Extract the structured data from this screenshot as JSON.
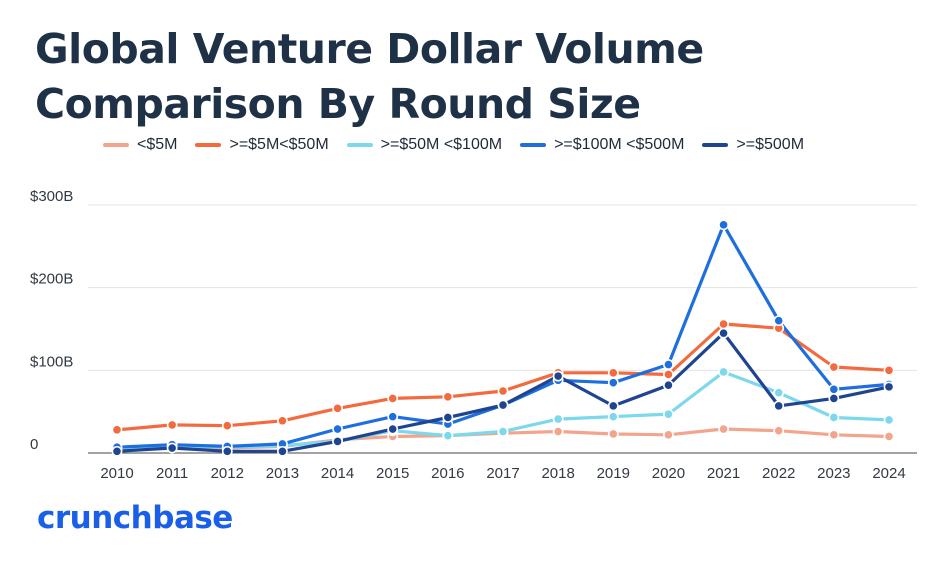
{
  "title_lines": [
    "Global Venture Dollar Volume",
    "Comparison By Round Size"
  ],
  "brand": "crunchbase",
  "chart_data": {
    "type": "line",
    "title": "Global Venture Dollar Volume Comparison By Round Size",
    "x": [
      "2010",
      "2011",
      "2012",
      "2013",
      "2014",
      "2015",
      "2016",
      "2017",
      "2018",
      "2019",
      "2020",
      "2021",
      "2022",
      "2023",
      "2024"
    ],
    "ylim": [
      0,
      300
    ],
    "y_ticks": [
      {
        "value": 0,
        "label": "0"
      },
      {
        "value": 100,
        "label": "$100B"
      },
      {
        "value": 200,
        "label": "$200B"
      },
      {
        "value": 300,
        "label": "$300B"
      }
    ],
    "grid": true,
    "legend_position": "top",
    "series": [
      {
        "name": "<$5M",
        "color": "#f2a58c",
        "values": [
          5,
          7,
          6,
          8,
          16,
          20,
          21,
          24,
          26,
          23,
          22,
          29,
          27,
          22,
          20
        ]
      },
      {
        "name": ">=$5M<$50M",
        "color": "#f36a3e",
        "values": [
          28,
          34,
          33,
          39,
          54,
          66,
          68,
          75,
          97,
          97,
          95,
          156,
          151,
          104,
          100
        ]
      },
      {
        "name": ">=$50M <$100M",
        "color": "#7dd8ec",
        "values": [
          6,
          9,
          7,
          9,
          14,
          27,
          21,
          26,
          41,
          44,
          47,
          98,
          73,
          43,
          40
        ]
      },
      {
        "name": ">=$100M <$500M",
        "color": "#1f6ee0",
        "values": [
          7,
          10,
          8,
          11,
          29,
          44,
          35,
          58,
          88,
          85,
          107,
          276,
          160,
          77,
          83
        ]
      },
      {
        "name": ">=$500M",
        "color": "#1f4490",
        "values": [
          2,
          6,
          2,
          2,
          14,
          29,
          43,
          58,
          93,
          57,
          82,
          145,
          57,
          66,
          80
        ]
      }
    ]
  }
}
